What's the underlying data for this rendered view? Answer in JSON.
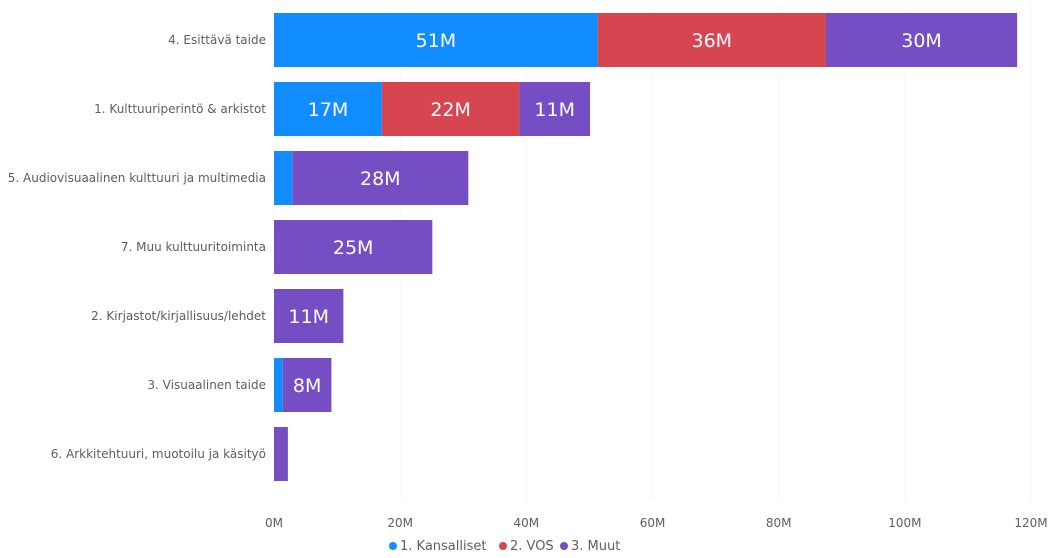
{
  "chart_data": {
    "type": "bar",
    "orientation": "horizontal",
    "stacked": true,
    "categories": [
      "4. Esittävä taide",
      "1. Kulttuuriperintö & arkistot",
      "5. Audiovisuaalinen kulttuuri ja multimedia",
      "7. Muu kulttuuritoiminta",
      "2. Kirjastot/kirjallisuus/lehdet",
      "3. Visuaalinen taide",
      "6. Arkkitehtuuri, muotoilu ja käsityö"
    ],
    "series": [
      {
        "name": "1. Kansalliset",
        "color": "#118dff",
        "values": [
          51.3,
          17.1,
          2.9,
          0,
          0,
          1.4,
          0
        ],
        "labels": [
          "51M",
          "17M",
          "",
          "",
          "",
          "",
          ""
        ]
      },
      {
        "name": "2. VOS",
        "color": "#d64550",
        "values": [
          36.2,
          21.8,
          0,
          0,
          0,
          0,
          0
        ],
        "labels": [
          "36M",
          "22M",
          "",
          "",
          "",
          "",
          ""
        ]
      },
      {
        "name": "3. Muut",
        "color": "#744ec2",
        "values": [
          30.3,
          11.2,
          27.9,
          25.1,
          11.0,
          7.7,
          2.2
        ],
        "labels": [
          "30M",
          "11M",
          "28M",
          "25M",
          "11M",
          "8M",
          ""
        ]
      }
    ],
    "xlim": [
      0,
      120
    ],
    "xticks": [
      "0M",
      "20M",
      "40M",
      "60M",
      "80M",
      "100M",
      "120M"
    ],
    "grid": true,
    "legend_position": "bottom"
  }
}
